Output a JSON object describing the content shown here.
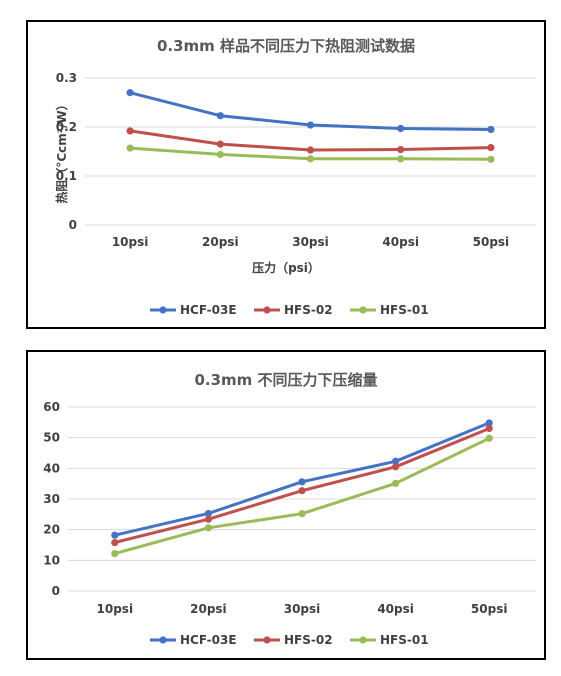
{
  "chart_data": [
    {
      "type": "line",
      "title": "0.3mm 样品不同压力下热阻测试数据",
      "xlabel": "压力（psi）",
      "ylabel": "热阻（°Ccm²/W）",
      "categories": [
        "10psi",
        "20psi",
        "30psi",
        "40psi",
        "50psi"
      ],
      "ylim": [
        0,
        0.3
      ],
      "yticks": [
        "0",
        "0.1",
        "0.2",
        "0.3"
      ],
      "grid": true,
      "legend_position": "bottom",
      "series": [
        {
          "name": "HCF-03E",
          "color": "#4472C4",
          "values": [
            0.27,
            0.223,
            0.204,
            0.197,
            0.195
          ]
        },
        {
          "name": "HFS-02",
          "color": "#C0504D",
          "values": [
            0.192,
            0.165,
            0.153,
            0.154,
            0.158
          ]
        },
        {
          "name": "HFS-01",
          "color": "#9BBB59",
          "values": [
            0.157,
            0.144,
            0.135,
            0.135,
            0.134
          ]
        }
      ]
    },
    {
      "type": "line",
      "title": "0.3mm 不同压力下压缩量",
      "xlabel": "",
      "ylabel": "",
      "categories": [
        "10psi",
        "20psi",
        "30psi",
        "40psi",
        "50psi"
      ],
      "ylim": [
        0,
        60
      ],
      "yticks": [
        "0",
        "10",
        "20",
        "30",
        "40",
        "50",
        "60"
      ],
      "grid": true,
      "legend_position": "bottom",
      "series": [
        {
          "name": "HCF-03E",
          "color": "#4472C4",
          "values": [
            18.2,
            25.3,
            35.6,
            42.3,
            54.8
          ]
        },
        {
          "name": "HFS-02",
          "color": "#C0504D",
          "values": [
            15.8,
            23.4,
            32.7,
            40.5,
            53.0
          ]
        },
        {
          "name": "HFS-01",
          "color": "#9BBB59",
          "values": [
            12.2,
            20.6,
            25.2,
            35.1,
            49.8
          ]
        }
      ]
    }
  ]
}
